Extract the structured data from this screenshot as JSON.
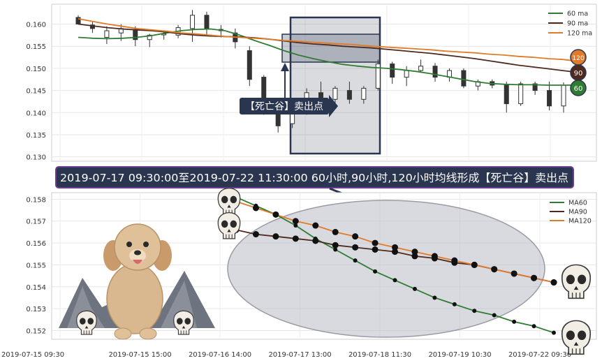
{
  "banner": {
    "text": "2019-07-17 09:30:00至2019-07-22 11:30:00 60小时,90小时,120小时均线形成【死亡谷】卖出点",
    "bg": "#2a3550",
    "border": "#6a3d8e"
  },
  "signal_label": "【死亡谷】卖出点",
  "colors": {
    "ma60": "#2e7d32",
    "ma90": "#4e2a1e",
    "ma120": "#e07b2a",
    "candle": "#333333",
    "box": "#2a3550"
  },
  "chart_data": [
    {
      "type": "candlestick",
      "legend": [
        "60 ma",
        "90 ma",
        "120 ma"
      ],
      "legend_position": "top-right",
      "ylim": [
        0.129,
        0.1645
      ],
      "yticks": [
        0.13,
        0.135,
        0.14,
        0.145,
        0.15,
        0.155,
        0.16
      ],
      "ytick_labels": [
        "0.130",
        "0.135",
        "0.140",
        "0.145",
        "0.150",
        "0.155",
        "0.160"
      ],
      "grid": true,
      "ma_end_badges": [
        "120",
        "90",
        "60"
      ],
      "ma120": [
        0.1612,
        0.1606,
        0.16,
        0.1595,
        0.159,
        0.1587,
        0.1584,
        0.158,
        0.1578,
        0.1575,
        0.1572,
        0.157,
        0.1568,
        0.1566,
        0.1563,
        0.1561,
        0.1559,
        0.1557,
        0.1555,
        0.1553,
        0.155,
        0.1548,
        0.1546,
        0.1544,
        0.1542,
        0.1539,
        0.1537,
        0.1535,
        0.1532,
        0.153,
        0.1527,
        0.1525,
        0.1522,
        0.152,
        0.1516
      ],
      "ma90": [
        0.16,
        0.1596,
        0.1592,
        0.1589,
        0.1587,
        0.1585,
        0.1582,
        0.1578,
        0.1575,
        0.1573,
        0.1572,
        0.1571,
        0.1569,
        0.1566,
        0.1562,
        0.1558,
        0.1555,
        0.1553,
        0.155,
        0.1548,
        0.1546,
        0.1543,
        0.154,
        0.1537,
        0.1534,
        0.153,
        0.1526,
        0.1522,
        0.1517,
        0.1512,
        0.1507,
        0.1503,
        0.1499,
        0.1495,
        0.1491
      ],
      "ma60": [
        0.157,
        0.1568,
        0.1567,
        0.1568,
        0.157,
        0.1574,
        0.158,
        0.1585,
        0.1588,
        0.1589,
        0.1585,
        0.1575,
        0.1563,
        0.1552,
        0.154,
        0.153,
        0.1522,
        0.1515,
        0.1509,
        0.1505,
        0.1502,
        0.15,
        0.1497,
        0.1493,
        0.1488,
        0.1482,
        0.1476,
        0.147,
        0.1466,
        0.1464,
        0.1463,
        0.1463,
        0.1462,
        0.1462,
        0.1462
      ],
      "candles": [
        {
          "o": 0.1615,
          "h": 0.162,
          "l": 0.16,
          "c": 0.16
        },
        {
          "o": 0.1598,
          "h": 0.1605,
          "l": 0.158,
          "c": 0.159
        },
        {
          "o": 0.157,
          "h": 0.1595,
          "l": 0.1555,
          "c": 0.1585
        },
        {
          "o": 0.158,
          "h": 0.16,
          "l": 0.1562,
          "c": 0.159
        },
        {
          "o": 0.1588,
          "h": 0.1595,
          "l": 0.155,
          "c": 0.1565
        },
        {
          "o": 0.1565,
          "h": 0.1578,
          "l": 0.1548,
          "c": 0.1575
        },
        {
          "o": 0.1578,
          "h": 0.1585,
          "l": 0.1565,
          "c": 0.1578
        },
        {
          "o": 0.1575,
          "h": 0.1598,
          "l": 0.1568,
          "c": 0.1592
        },
        {
          "o": 0.159,
          "h": 0.1632,
          "l": 0.156,
          "c": 0.162
        },
        {
          "o": 0.162,
          "h": 0.1628,
          "l": 0.1575,
          "c": 0.159
        },
        {
          "o": 0.1588,
          "h": 0.1598,
          "l": 0.157,
          "c": 0.1585
        },
        {
          "o": 0.158,
          "h": 0.159,
          "l": 0.1545,
          "c": 0.156
        },
        {
          "o": 0.154,
          "h": 0.155,
          "l": 0.146,
          "c": 0.1475
        },
        {
          "o": 0.148,
          "h": 0.1485,
          "l": 0.1395,
          "c": 0.141
        },
        {
          "o": 0.1415,
          "h": 0.142,
          "l": 0.1355,
          "c": 0.137
        },
        {
          "o": 0.1375,
          "h": 0.142,
          "l": 0.1365,
          "c": 0.1405
        },
        {
          "o": 0.1405,
          "h": 0.1455,
          "l": 0.1395,
          "c": 0.1445
        },
        {
          "o": 0.1445,
          "h": 0.147,
          "l": 0.141,
          "c": 0.143
        },
        {
          "o": 0.143,
          "h": 0.146,
          "l": 0.1415,
          "c": 0.1455
        },
        {
          "o": 0.145,
          "h": 0.147,
          "l": 0.142,
          "c": 0.143
        },
        {
          "o": 0.143,
          "h": 0.146,
          "l": 0.142,
          "c": 0.1455
        },
        {
          "o": 0.1455,
          "h": 0.152,
          "l": 0.145,
          "c": 0.151
        },
        {
          "o": 0.151,
          "h": 0.1515,
          "l": 0.1465,
          "c": 0.148
        },
        {
          "o": 0.148,
          "h": 0.1505,
          "l": 0.146,
          "c": 0.1495
        },
        {
          "o": 0.1495,
          "h": 0.152,
          "l": 0.149,
          "c": 0.1505
        },
        {
          "o": 0.1505,
          "h": 0.1512,
          "l": 0.147,
          "c": 0.148
        },
        {
          "o": 0.148,
          "h": 0.15,
          "l": 0.147,
          "c": 0.1495
        },
        {
          "o": 0.1495,
          "h": 0.15,
          "l": 0.1455,
          "c": 0.146
        },
        {
          "o": 0.146,
          "h": 0.1475,
          "l": 0.145,
          "c": 0.147
        },
        {
          "o": 0.147,
          "h": 0.1475,
          "l": 0.1455,
          "c": 0.1462
        },
        {
          "o": 0.1462,
          "h": 0.147,
          "l": 0.14,
          "c": 0.142
        },
        {
          "o": 0.142,
          "h": 0.147,
          "l": 0.1415,
          "c": 0.1465
        },
        {
          "o": 0.1465,
          "h": 0.147,
          "l": 0.144,
          "c": 0.145
        },
        {
          "o": 0.145,
          "h": 0.147,
          "l": 0.1405,
          "c": 0.1415
        },
        {
          "o": 0.1415,
          "h": 0.1468,
          "l": 0.14,
          "c": 0.1462
        }
      ]
    },
    {
      "type": "line",
      "legend": [
        "MA60",
        "MA90",
        "MA120"
      ],
      "legend_position": "top-right",
      "ylim": [
        0.1516,
        0.1583
      ],
      "yticks": [
        0.152,
        0.153,
        0.154,
        0.155,
        0.156,
        0.157,
        0.158
      ],
      "ytick_labels": [
        "0.152",
        "0.153",
        "0.154",
        "0.155",
        "0.156",
        "0.157",
        "0.158"
      ],
      "grid": true,
      "x_tick_labels": [
        "2019-07-15 09:30",
        "2019-07-15 15:00",
        "2019-07-16 14:00",
        "2019-07-17 13:00",
        "2019-07-18 11:30",
        "2019-07-19 10:30",
        "2019-07-22 09:30"
      ],
      "series": [
        {
          "name": "MA60",
          "color": "#2e7d32",
          "values": [
            0.1581,
            0.1577,
            0.1573,
            0.1568,
            0.1562,
            0.1557,
            0.1552,
            0.1547,
            0.1543,
            0.1539,
            0.1535,
            0.1532,
            0.1529,
            0.1527,
            0.1524,
            0.1522,
            0.1519
          ]
        },
        {
          "name": "MA90",
          "color": "#4e2a1e",
          "values": [
            0.1566,
            0.1564,
            0.1563,
            0.1562,
            0.1561,
            0.1559,
            0.1558,
            0.1557,
            0.1556,
            0.1554,
            0.1553,
            0.1551,
            0.155,
            0.1548,
            0.1546,
            0.1544,
            0.1542
          ]
        },
        {
          "name": "MA120",
          "color": "#e07b2a",
          "values": [
            0.1579,
            0.1576,
            0.1573,
            0.157,
            0.1568,
            0.1565,
            0.1563,
            0.156,
            0.1558,
            0.1556,
            0.1554,
            0.1552,
            0.155,
            0.1548,
            0.1546,
            0.1544,
            0.1542
          ]
        }
      ]
    }
  ]
}
